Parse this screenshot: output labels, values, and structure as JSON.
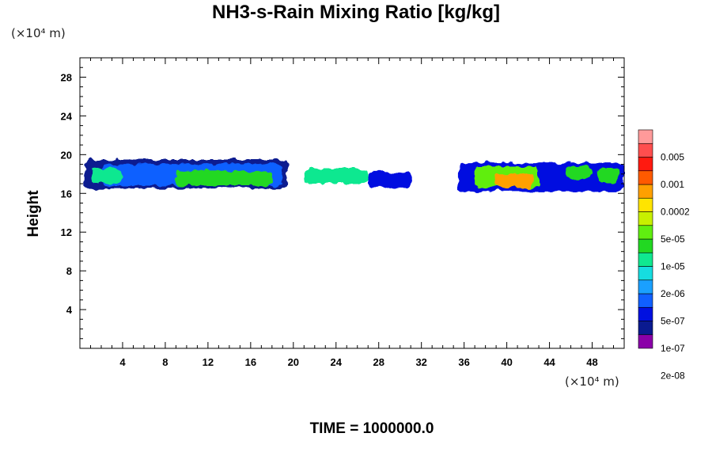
{
  "chart_data": {
    "type": "heatmap",
    "title": "NH3-s-Rain Mixing Ratio [kg/kg]",
    "ylabel": "Height",
    "xlabel": "",
    "x_unit": "(×10⁴ m)",
    "y_unit": "(×10⁴ m)",
    "xlim": [
      0,
      51
    ],
    "ylim": [
      0,
      30
    ],
    "x_ticks": [
      4,
      8,
      12,
      16,
      20,
      24,
      28,
      32,
      36,
      40,
      44,
      48
    ],
    "y_ticks": [
      4,
      8,
      12,
      16,
      20,
      24,
      28
    ],
    "colorbar": {
      "labels": [
        "0.005",
        "0.001",
        "0.0002",
        "5e-05",
        "1e-05",
        "2e-06",
        "5e-07",
        "1e-07",
        "2e-08"
      ],
      "colors": [
        "#8a00a8",
        "#0a1a90",
        "#0010e0",
        "#1060ff",
        "#1aa0ff",
        "#16dde0",
        "#10e890",
        "#22d822",
        "#60ee10",
        "#c8f000",
        "#ffe400",
        "#ffa000",
        "#ff5a00",
        "#ff1a10",
        "#ff4e4e",
        "#ff9a9a"
      ]
    },
    "cells": [
      {
        "x": [
          0.5,
          19.5
        ],
        "y": [
          16.5,
          19.5
        ],
        "level": 1
      },
      {
        "x": [
          2,
          19
        ],
        "y": [
          16.8,
          19.0
        ],
        "level": 3
      },
      {
        "x": [
          27,
          31
        ],
        "y": [
          16.6,
          18.2
        ],
        "level": 2
      },
      {
        "x": [
          35.5,
          51
        ],
        "y": [
          16.2,
          19.2
        ],
        "level": 2
      },
      {
        "x": [
          1,
          4
        ],
        "y": [
          17.0,
          18.6
        ],
        "level": 6
      },
      {
        "x": [
          9,
          18
        ],
        "y": [
          16.8,
          18.4
        ],
        "level": 7
      },
      {
        "x": [
          21,
          27
        ],
        "y": [
          17.0,
          18.6
        ],
        "level": 6
      },
      {
        "x": [
          37,
          43
        ],
        "y": [
          16.6,
          18.8
        ],
        "level": 8
      },
      {
        "x": [
          39,
          42.5
        ],
        "y": [
          16.6,
          18.0
        ],
        "level": 11
      },
      {
        "x": [
          45.5,
          48
        ],
        "y": [
          17.6,
          18.8
        ],
        "level": 7
      },
      {
        "x": [
          48.5,
          50.5
        ],
        "y": [
          17.0,
          18.6
        ],
        "level": 7
      }
    ],
    "grid": false
  },
  "time_label": "TIME = 1000000.0"
}
